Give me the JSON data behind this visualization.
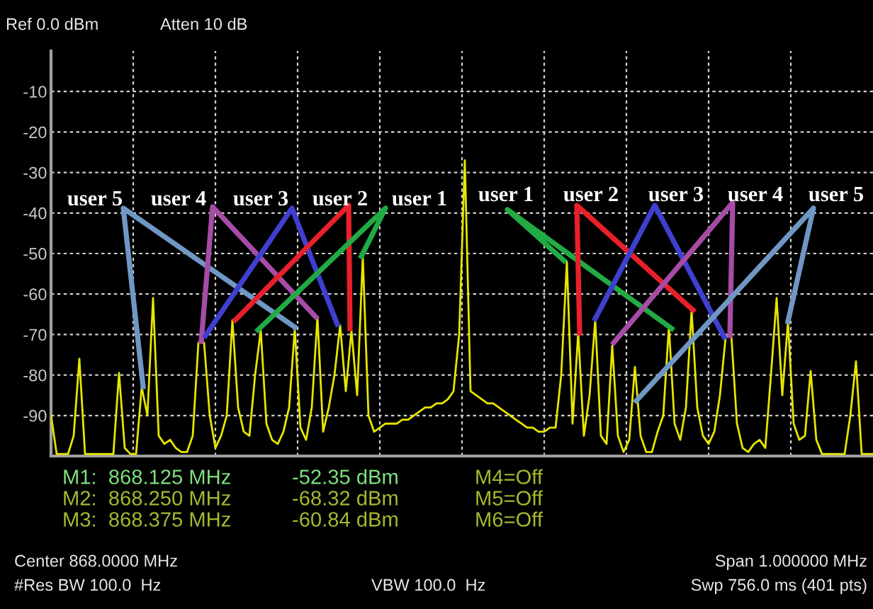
{
  "chart_data": {
    "type": "line",
    "categories": [
      null,
      null,
      null,
      null,
      null,
      null,
      null,
      null,
      null,
      null,
      null,
      null,
      null,
      null,
      null,
      null,
      null,
      null,
      null,
      null,
      null,
      null,
      null,
      null,
      null,
      null,
      null,
      null,
      null,
      null,
      null,
      null,
      null,
      null,
      null,
      null,
      null,
      null,
      null,
      null,
      null,
      null,
      null,
      null,
      null,
      null,
      null,
      null,
      null,
      null,
      null,
      null,
      null,
      null,
      null,
      null,
      null,
      null,
      null,
      null,
      null,
      null,
      null,
      null,
      null,
      null,
      null,
      null,
      null,
      null,
      null,
      null,
      null,
      null,
      null,
      null,
      null,
      null,
      null,
      null,
      null,
      null,
      null,
      null,
      null,
      null,
      null,
      null,
      null,
      null,
      null,
      null,
      null,
      null,
      null,
      null,
      null,
      null,
      null,
      null,
      null,
      null,
      null,
      null,
      null,
      null,
      null,
      null,
      null,
      null,
      null,
      null,
      null,
      null,
      null,
      null,
      null,
      null,
      null,
      null,
      null,
      null,
      null,
      null,
      null,
      null,
      null,
      null,
      null,
      null,
      null,
      null,
      null,
      null,
      null,
      null,
      null,
      null,
      null,
      null,
      null,
      null,
      null,
      null,
      null,
      null
    ],
    "ylim": [
      -100,
      0
    ],
    "yticks": [
      -90,
      -80,
      -70,
      -60,
      -50,
      -40,
      -30,
      -20,
      -10
    ],
    "tick_labels": "y",
    "grid": true,
    "series": [
      {
        "color": "#e6e600",
        "values": [
          -90,
          -99.5,
          -99.5,
          -99.5,
          -95,
          -76,
          -99.5,
          -99.5,
          -99.5,
          -99.5,
          -99.5,
          -99.5,
          -79.5,
          -98,
          -99.5,
          -99.5,
          -83,
          -90,
          -61,
          -95,
          -97,
          -96,
          -98,
          -99,
          -99,
          -95,
          -72,
          -72,
          -90,
          -98,
          -95,
          -90,
          -66.4,
          -88,
          -94,
          -95,
          -80,
          -69,
          -92,
          -96,
          -97,
          -94,
          -88,
          -68.6,
          -93,
          -96,
          -88,
          -65.6,
          -94,
          -88,
          -80,
          -67.7,
          -84,
          -69,
          -85,
          -50.7,
          -90,
          -94,
          -93,
          -92,
          -92,
          -92,
          -91,
          -91,
          -90,
          -89,
          -88,
          -88,
          -87,
          -87,
          -86,
          -84,
          -70,
          -27,
          -84,
          -85,
          -86,
          -87,
          -87,
          -88,
          -89,
          -90,
          -91,
          -92,
          -93,
          -93,
          -94,
          -94,
          -93,
          -93,
          -80,
          -52,
          -92,
          -69.5,
          -95,
          -85,
          -66.4,
          -95,
          -97,
          -72.7,
          -95,
          -99,
          -96,
          -78,
          -95,
          -99,
          -99,
          -94,
          -90,
          -68,
          -92,
          -96,
          -88,
          -64,
          -88,
          -95,
          -97,
          -94,
          -85,
          -70.7,
          -70,
          -92,
          -98,
          -99,
          -97,
          -96,
          -98,
          -80,
          -61,
          -85,
          -66.8,
          -92,
          -96,
          -95,
          -79,
          -96,
          -99.5,
          -99.5,
          -99.5,
          -99.5,
          -99.5,
          -90,
          -76.6,
          -99.5,
          -99.5,
          -99.5
        ]
      }
    ],
    "annotations": [
      "Ref 0.0 dBm",
      "Atten 10 dB",
      "M1:  868.125 MHz",
      "-52.35 dBm",
      "M4=Off",
      "M2:  868.250 MHz",
      "-68.32 dBm",
      "M5=Off",
      "M3:  868.375 MHz",
      "-60.84 dBm",
      "M6=Off",
      "Center 868.0000 MHz",
      "Span 1.000000 MHz",
      "#Res BW 100.0  Hz",
      "VBW 100.0  Hz",
      "Swp 756.0 ms (401 pts)",
      "user 5",
      "user 4",
      "user 3",
      "user 2",
      "user 1",
      "user 1",
      "user 2",
      "user 3",
      "user 4",
      "user 5"
    ]
  }
}
